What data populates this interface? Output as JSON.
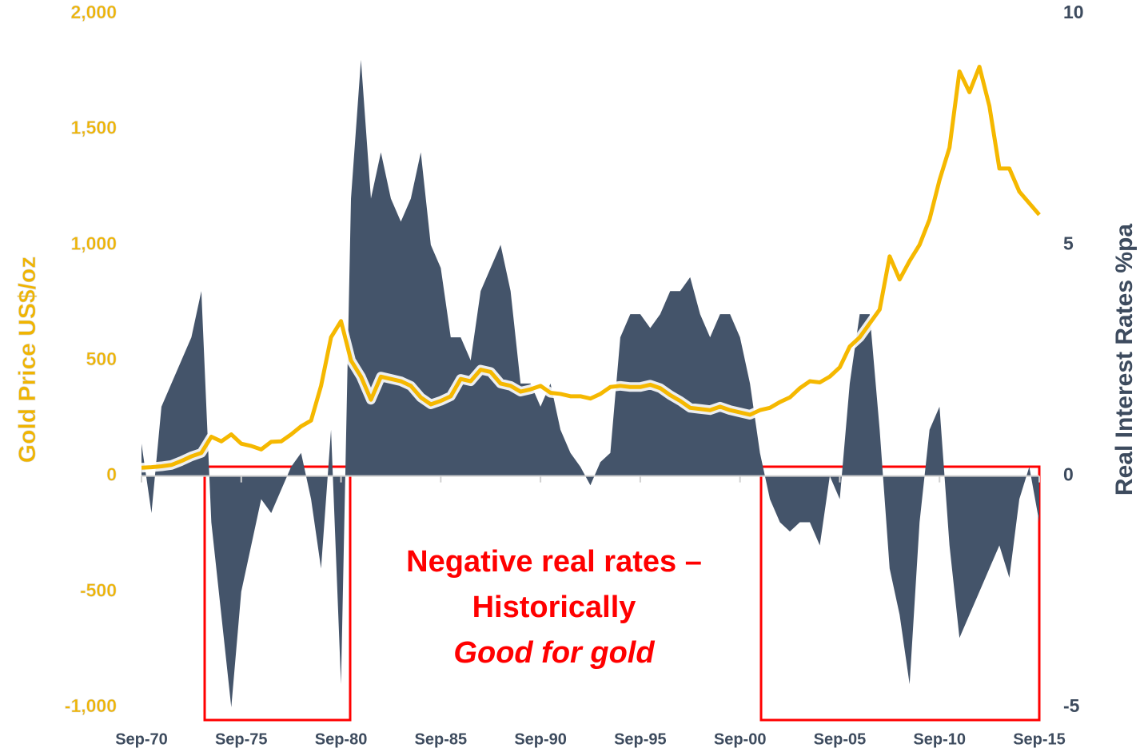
{
  "chart_data": {
    "type": "line",
    "y_label": "Gold Price US$/oz",
    "y2_label": "Real Interest Rates %pa",
    "categories": [
      "Sep-70",
      null,
      null,
      null,
      null,
      null,
      null,
      null,
      null,
      null,
      "Sep-75",
      null,
      null,
      null,
      null,
      null,
      null,
      null,
      null,
      null,
      "Sep-80",
      null,
      null,
      null,
      null,
      null,
      null,
      null,
      null,
      null,
      "Sep-85",
      null,
      null,
      null,
      null,
      null,
      null,
      null,
      null,
      null,
      "Sep-90",
      null,
      null,
      null,
      null,
      null,
      null,
      null,
      null,
      null,
      "Sep-95",
      null,
      null,
      null,
      null,
      null,
      null,
      null,
      null,
      null,
      "Sep-00",
      null,
      null,
      null,
      null,
      null,
      null,
      null,
      null,
      null,
      "Sep-05",
      null,
      null,
      null,
      null,
      null,
      null,
      null,
      null,
      null,
      "Sep-10",
      null,
      null,
      null,
      null,
      null,
      null,
      null,
      null,
      null,
      "Sep-15"
    ],
    "series": [
      {
        "name": "Real Interest Rates",
        "type": "area",
        "axis": "y2",
        "color": "#44546a",
        "values": [
          0.7,
          -0.8,
          1.5,
          2,
          2.5,
          3,
          4,
          -1,
          -3,
          -5,
          -2.5,
          -1.5,
          -0.5,
          -0.8,
          -0.3,
          0.2,
          0.5,
          -0.5,
          -2,
          1,
          -4.5,
          6,
          9,
          6,
          7,
          6,
          5.5,
          6,
          7,
          5,
          4.5,
          3,
          3,
          2.5,
          4,
          4.5,
          5,
          4,
          2,
          2,
          1.5,
          2,
          1,
          0.5,
          0.2,
          -0.2,
          0.3,
          0.5,
          3,
          3.5,
          3.5,
          3.2,
          3.5,
          4,
          4,
          4.3,
          3.5,
          3,
          3.5,
          3.5,
          3,
          2,
          0.5,
          -0.5,
          -1,
          -1.2,
          -1,
          -1,
          -1.5,
          0,
          -0.5,
          2,
          3.5,
          3.5,
          1,
          -2,
          -3,
          -4.5,
          -1,
          1,
          1.5,
          -1.5,
          -3.5,
          -3,
          -2.5,
          -2,
          -1.5,
          -2.2,
          -0.5,
          0.2,
          -1
        ]
      },
      {
        "name": "Gold Price",
        "type": "line",
        "color": "#f5b800",
        "values": [
          36,
          38,
          42,
          48,
          65,
          85,
          100,
          170,
          150,
          180,
          140,
          130,
          115,
          148,
          150,
          180,
          215,
          240,
          390,
          600,
          670,
          500,
          430,
          330,
          430,
          420,
          410,
          390,
          340,
          310,
          325,
          345,
          420,
          410,
          460,
          450,
          400,
          390,
          365,
          375,
          390,
          360,
          355,
          345,
          345,
          335,
          355,
          385,
          390,
          385,
          385,
          395,
          380,
          350,
          325,
          295,
          290,
          285,
          300,
          285,
          275,
          265,
          285,
          295,
          320,
          340,
          380,
          410,
          405,
          430,
          470,
          560,
          600,
          660,
          720,
          950,
          850,
          930,
          1000,
          1110,
          1280,
          1420,
          1750,
          1660,
          1770,
          1600,
          1330,
          1330,
          1230,
          1180,
          1130
        ]
      }
    ],
    "ylim": [
      -1000,
      2000
    ],
    "yticks": [
      {
        "value": -1000,
        "label": "-1,000"
      },
      -500,
      0,
      500,
      {
        "value": 1000,
        "label": "1,000"
      },
      {
        "value": 1500,
        "label": "1,500"
      },
      {
        "value": 2000,
        "label": "2,000"
      }
    ],
    "y2lim": [
      -5,
      10
    ],
    "y2ticks": [
      -5,
      0,
      5,
      10
    ],
    "annotations": [
      "Negative real rates –",
      "Historically",
      "Good for gold"
    ]
  }
}
